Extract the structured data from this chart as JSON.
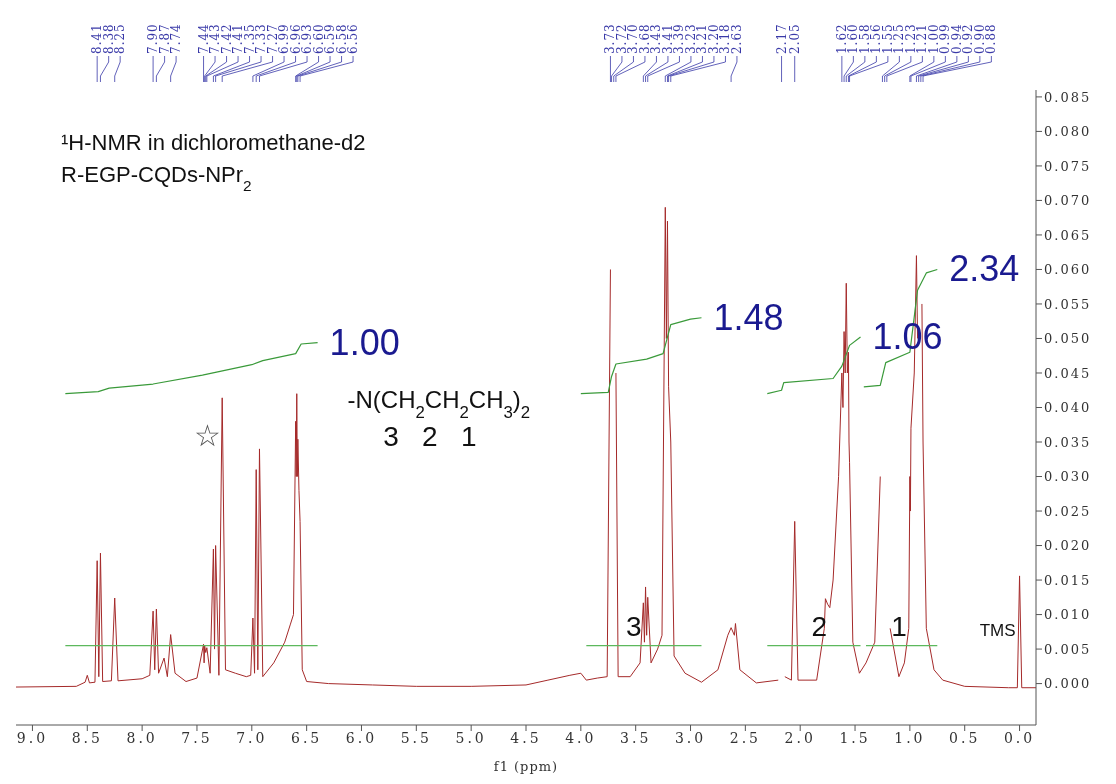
{
  "chart_data": {
    "type": "line",
    "title": "¹H-NMR in dichloromethane-d2",
    "subtitle": "R-EGP-CQDs-NPr$_{2}$",
    "xlabel": "f1 (ppm)",
    "xlim": [
      9.15,
      -0.15
    ],
    "xticks": [
      {
        "value": 9,
        "label": "9.0"
      },
      {
        "value": 8.5,
        "label": "8.5"
      },
      {
        "value": 8,
        "label": "8.0"
      },
      {
        "value": 7.5,
        "label": "7.5"
      },
      {
        "value": 7,
        "label": "7.0"
      },
      {
        "value": 6.5,
        "label": "6.5"
      },
      {
        "value": 6,
        "label": "6.0"
      },
      {
        "value": 5.5,
        "label": "5.5"
      },
      {
        "value": 5,
        "label": "5.0"
      },
      {
        "value": 4.5,
        "label": "4.5"
      },
      {
        "value": 4,
        "label": "4.0"
      },
      {
        "value": 3.5,
        "label": "3.5"
      },
      {
        "value": 3,
        "label": "3.0"
      },
      {
        "value": 2.5,
        "label": "2.5"
      },
      {
        "value": 2,
        "label": "2.0"
      },
      {
        "value": 1.5,
        "label": "1.5"
      },
      {
        "value": 1,
        "label": "1.0"
      },
      {
        "value": 0.5,
        "label": "0.5"
      },
      {
        "value": 0,
        "label": "0.0"
      }
    ],
    "ylim": [
      -0.006,
      0.086
    ],
    "yticks": [
      {
        "value": 0,
        "label": "0.000"
      },
      {
        "value": 0.005,
        "label": "0.005"
      },
      {
        "value": 0.01,
        "label": "0.010"
      },
      {
        "value": 0.015,
        "label": "0.015"
      },
      {
        "value": 0.02,
        "label": "0.020"
      },
      {
        "value": 0.025,
        "label": "0.025"
      },
      {
        "value": 0.03,
        "label": "0.030"
      },
      {
        "value": 0.035,
        "label": "0.035"
      },
      {
        "value": 0.04,
        "label": "0.040"
      },
      {
        "value": 0.045,
        "label": "0.045"
      },
      {
        "value": 0.05,
        "label": "0.050"
      },
      {
        "value": 0.055,
        "label": "0.055"
      },
      {
        "value": 0.06,
        "label": "0.060"
      },
      {
        "value": 0.065,
        "label": "0.065"
      },
      {
        "value": 0.07,
        "label": "0.070"
      },
      {
        "value": 0.075,
        "label": "0.075"
      },
      {
        "value": 0.08,
        "label": "0.080"
      },
      {
        "value": 0.085,
        "label": "0.085"
      }
    ],
    "grid": false,
    "legend": false,
    "marker": "none",
    "line_style": "solid",
    "series": [
      {
        "type": "line",
        "color": "#a52a2a",
        "x": [
          9.15,
          8.6,
          8.52,
          8.5,
          8.48,
          8.43,
          8.41,
          8.395,
          8.38,
          8.36,
          8.28,
          8.25,
          8.22,
          8.0,
          7.93,
          7.9,
          7.885,
          7.87,
          7.85,
          7.8,
          7.77,
          7.74,
          7.7,
          7.6,
          7.5,
          7.44,
          7.435,
          7.43,
          7.42,
          7.41,
          7.38,
          7.35,
          7.34,
          7.33,
          7.3,
          7.27,
          7.24,
          7.15,
          7.05,
          7.01,
          6.99,
          6.975,
          6.96,
          6.945,
          6.93,
          6.9,
          6.8,
          6.7,
          6.65,
          6.62,
          6.6,
          6.595,
          6.59,
          6.585,
          6.58,
          6.57,
          6.56,
          6.54,
          6.5,
          6.3,
          5.9,
          5.5,
          5.0,
          4.5,
          4.3,
          4.1,
          4.0,
          3.95,
          3.85,
          3.76,
          3.73,
          3.72,
          3.71,
          3.7,
          3.68,
          3.66,
          3.55,
          3.46,
          3.43,
          3.42,
          3.41,
          3.4,
          3.39,
          3.36,
          3.3,
          3.26,
          3.23,
          3.22,
          3.21,
          3.2,
          3.18,
          3.15,
          3.05,
          2.9,
          2.75,
          2.66,
          2.63,
          2.6,
          2.59,
          2.55,
          2.4,
          2.2,
          2.17,
          2.14,
          2.08,
          2.05,
          2.02,
          1.85,
          1.78,
          1.77,
          1.75,
          1.73,
          1.7,
          1.65,
          1.62,
          1.61,
          1.6,
          1.59,
          1.58,
          1.57,
          1.56,
          1.555,
          1.55,
          1.52,
          1.46,
          1.4,
          1.32,
          1.27,
          1.25,
          1.24,
          1.23,
          1.22,
          1.21,
          1.18,
          1.1,
          1.05,
          1.01,
          1.0,
          0.995,
          0.99,
          0.96,
          0.94,
          0.93,
          0.92,
          0.91,
          0.9,
          0.89,
          0.88,
          0.85,
          0.78,
          0.7,
          0.5,
          0.1,
          0.02,
          0.0,
          -0.02,
          -0.15
        ],
        "values": [
          -0.0005,
          -0.0004,
          0.0002,
          0.0012,
          0.0001,
          0.0002,
          0.0178,
          0.001,
          0.0189,
          0.0003,
          0.0004,
          0.0124,
          0.0004,
          0.0007,
          0.0012,
          0.0105,
          0.002,
          0.0108,
          0.0015,
          0.0037,
          0.001,
          0.0071,
          0.0015,
          0.0003,
          0.0008,
          0.0057,
          0.003,
          0.0055,
          0.0045,
          0.0052,
          0.0015,
          0.0195,
          0.005,
          0.02,
          0.0012,
          0.0414,
          0.002,
          0.0015,
          0.001,
          0.0012,
          0.0095,
          0.0015,
          0.031,
          0.002,
          0.034,
          0.001,
          0.003,
          0.006,
          0.0085,
          0.01,
          0.038,
          0.03,
          0.042,
          0.03,
          0.0354,
          0.028,
          0.0235,
          0.002,
          0.0003,
          0.0,
          -0.0002,
          -0.0004,
          -0.0004,
          -0.0002,
          0.0005,
          0.0012,
          0.0015,
          0.0005,
          0.0008,
          0.001,
          0.06,
          null,
          null,
          null,
          0.045,
          0.001,
          0.001,
          0.003,
          0.0117,
          0.006,
          0.014,
          0.007,
          0.0125,
          0.003,
          0.005,
          0.007,
          0.069,
          0.05,
          0.067,
          0.043,
          0.035,
          0.004,
          0.0015,
          0.0002,
          0.002,
          0.007,
          0.0081,
          0.007,
          0.0087,
          0.002,
          0.0001,
          0.0005,
          null,
          0.001,
          0.0005,
          0.0235,
          0.0005,
          0.0005,
          0.008,
          0.0123,
          0.0115,
          0.011,
          0.015,
          0.03,
          0.045,
          0.04,
          0.051,
          0.045,
          0.058,
          0.045,
          0.048,
          0.035,
          0.032,
          0.006,
          0.0015,
          0.003,
          0.006,
          0.03,
          null,
          null,
          null,
          null,
          null,
          0.008,
          0.001,
          0.003,
          0.008,
          0.03,
          0.025,
          0.037,
          0.045,
          0.062,
          0.05,
          null,
          null,
          null,
          0.055,
          0.035,
          0.008,
          0.002,
          0.0005,
          -0.0004,
          -0.0006,
          -0.0006,
          0.0156,
          -0.0006,
          -0.0006
        ]
      },
      {
        "type": "line",
        "color": "#3a9a3a",
        "x": [
          8.7,
          8.4,
          8.3,
          7.9,
          7.45,
          7.3,
          7.0,
          6.9,
          6.6,
          6.55,
          6.4
        ],
        "values": [
          0.042,
          0.0423,
          0.0428,
          0.0434,
          0.0447,
          0.0452,
          0.0462,
          0.0468,
          0.0478,
          0.0492,
          0.0494
        ]
      },
      {
        "type": "line",
        "color": "#3a9a3a",
        "x": [
          4.0,
          3.75,
          3.72,
          3.68,
          3.4,
          3.25,
          3.18,
          3.0,
          2.9
        ],
        "values": [
          0.042,
          0.0422,
          0.0445,
          0.0463,
          0.047,
          0.0478,
          0.052,
          0.0528,
          0.053
        ]
      },
      {
        "type": "line",
        "color": "#3a9a3a",
        "x": [
          2.3,
          2.17,
          2.15,
          1.7,
          1.62,
          1.55,
          1.45
        ],
        "values": [
          0.042,
          0.0425,
          0.0436,
          0.0442,
          0.046,
          0.049,
          0.0502
        ]
      },
      {
        "type": "line",
        "color": "#3a9a3a",
        "x": [
          1.42,
          1.27,
          1.22,
          1.0,
          0.93,
          0.85,
          0.75
        ],
        "values": [
          0.043,
          0.0432,
          0.0465,
          0.048,
          0.057,
          0.0595,
          0.06
        ]
      },
      {
        "type": "line",
        "color": "#5cb85c",
        "x": [
          8.7,
          6.4
        ],
        "values": [
          0.0055,
          0.0055
        ]
      },
      {
        "type": "line",
        "color": "#5cb85c",
        "x": [
          3.95,
          2.9
        ],
        "values": [
          0.0055,
          0.0055
        ]
      },
      {
        "type": "line",
        "color": "#5cb85c",
        "x": [
          2.3,
          1.45
        ],
        "values": [
          0.0055,
          0.0055
        ]
      },
      {
        "type": "line",
        "color": "#5cb85c",
        "x": [
          1.4,
          0.75
        ],
        "values": [
          0.0055,
          0.0055
        ]
      }
    ],
    "annotations": [
      "-N(CH$_{2}$CH$_{2}$CH$_{3}$)$_{2}$",
      "3   2   1",
      "3",
      "2",
      "1",
      {
        "text": "1.00",
        "x": 6.4,
        "y": 0.0494
      },
      {
        "text": "1.48",
        "x": 2.9,
        "y": 0.053
      },
      {
        "text": "1.06",
        "x": 1.45,
        "y": 0.0502
      },
      {
        "text": "2.34",
        "x": 0.75,
        "y": 0.06
      },
      {
        "text": "☆",
        "x": 7.27,
        "y": 0.0414
      },
      {
        "text": "TMS",
        "x": 0.0,
        "y": 0.0156
      },
      {
        "text": "8.41",
        "x": 8.41
      },
      {
        "text": "8.38",
        "x": 8.38
      },
      {
        "text": "8.25",
        "x": 8.25
      },
      {
        "text": "7.90",
        "x": 7.9
      },
      {
        "text": "7.87",
        "x": 7.87
      },
      {
        "text": "7.74",
        "x": 7.74
      },
      {
        "text": "7.44",
        "x": 7.44
      },
      {
        "text": "7.43",
        "x": 7.43
      },
      {
        "text": "7.42",
        "x": 7.42
      },
      {
        "text": "7.41",
        "x": 7.41
      },
      {
        "text": "7.35",
        "x": 7.35
      },
      {
        "text": "7.33",
        "x": 7.33
      },
      {
        "text": "7.27",
        "x": 7.27
      },
      {
        "text": "6.99",
        "x": 6.99
      },
      {
        "text": "6.96",
        "x": 6.96
      },
      {
        "text": "6.93",
        "x": 6.93
      },
      {
        "text": "6.60",
        "x": 6.6
      },
      {
        "text": "6.59",
        "x": 6.59
      },
      {
        "text": "6.58",
        "x": 6.58
      },
      {
        "text": "6.56",
        "x": 6.56
      },
      {
        "text": "3.73",
        "x": 3.73
      },
      {
        "text": "3.72",
        "x": 3.72
      },
      {
        "text": "3.70",
        "x": 3.7
      },
      {
        "text": "3.68",
        "x": 3.68
      },
      {
        "text": "3.43",
        "x": 3.43
      },
      {
        "text": "3.41",
        "x": 3.41
      },
      {
        "text": "3.39",
        "x": 3.39
      },
      {
        "text": "3.23",
        "x": 3.23
      },
      {
        "text": "3.21",
        "x": 3.21
      },
      {
        "text": "3.20",
        "x": 3.2
      },
      {
        "text": "3.18",
        "x": 3.18
      },
      {
        "text": "2.63",
        "x": 2.63
      },
      {
        "text": "2.17",
        "x": 2.17
      },
      {
        "text": "2.05",
        "x": 2.05
      },
      {
        "text": "1.62",
        "x": 1.62
      },
      {
        "text": "1.60",
        "x": 1.6
      },
      {
        "text": "1.58",
        "x": 1.58
      },
      {
        "text": "1.56",
        "x": 1.56
      },
      {
        "text": "1.55",
        "x": 1.55
      },
      {
        "text": "1.25",
        "x": 1.25
      },
      {
        "text": "1.23",
        "x": 1.23
      },
      {
        "text": "1.21",
        "x": 1.21
      },
      {
        "text": "1.00",
        "x": 1.0
      },
      {
        "text": "0.99",
        "x": 0.99
      },
      {
        "text": "0.94",
        "x": 0.94
      },
      {
        "text": "0.92",
        "x": 0.92
      },
      {
        "text": "0.90",
        "x": 0.9
      },
      {
        "text": "0.88",
        "x": 0.88
      }
    ]
  }
}
